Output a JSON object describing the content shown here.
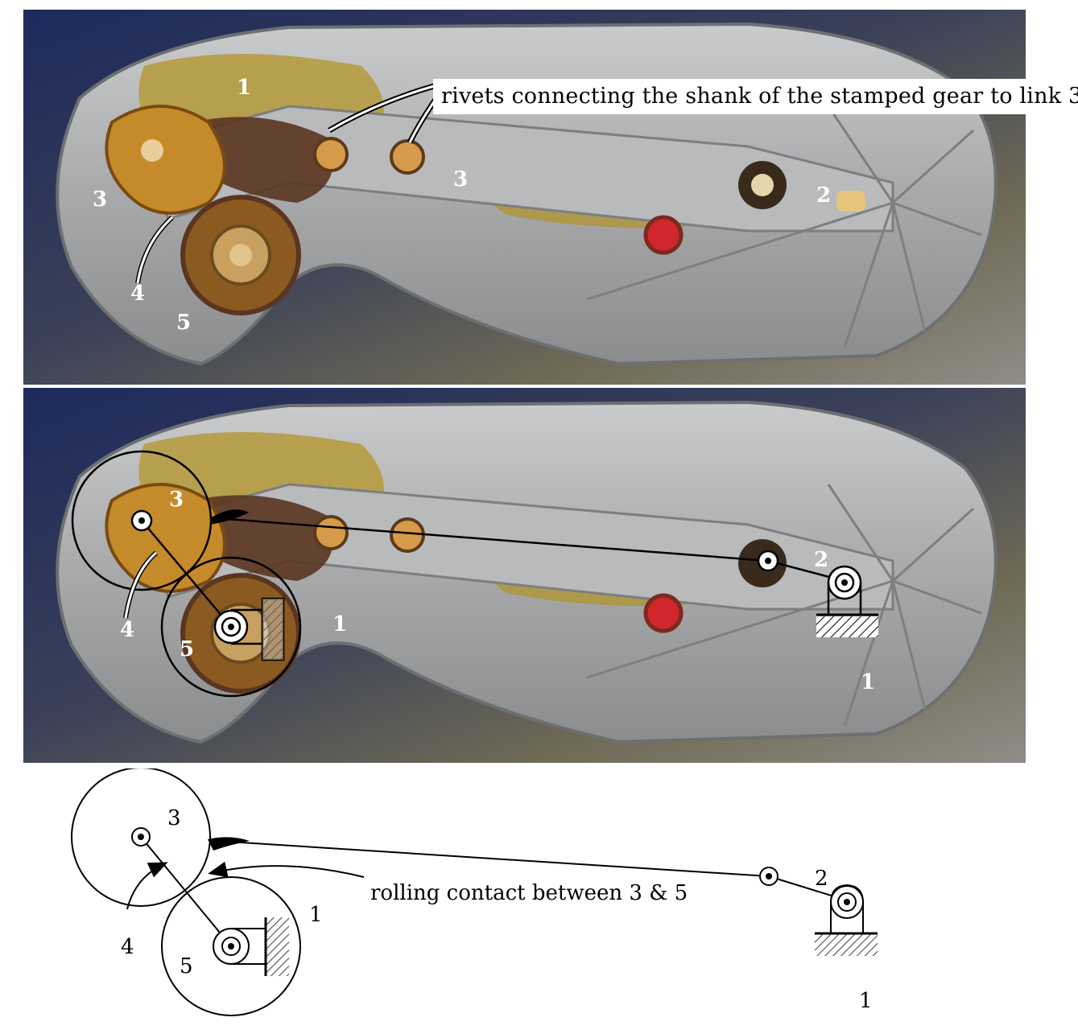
{
  "top_panel": {
    "callout": "rivets connecting the shank of the stamped gear to link 3",
    "labels": {
      "link1": "1",
      "link2": "2",
      "link3_left": "3",
      "link3_mid": "3",
      "link4": "4",
      "link5": "5"
    }
  },
  "middle_panel": {
    "labels": {
      "link1_left": "1",
      "link1_right": "1",
      "link2": "2",
      "link3": "3",
      "link4": "4",
      "link5": "5"
    }
  },
  "schematic": {
    "labels": {
      "link1_gear": "1",
      "link1_ground": "1",
      "link2": "2",
      "link3": "3",
      "link4": "4",
      "link5": "5"
    },
    "annotation": "rolling contact between 3 & 5"
  },
  "colors": {
    "metal": "#a7a9ab",
    "metal_light": "#c9cbcc",
    "grease": "#b59a3a",
    "rust": "#5a3520",
    "background_blue": "#1d2a5c",
    "red_plug": "#d1262b"
  }
}
